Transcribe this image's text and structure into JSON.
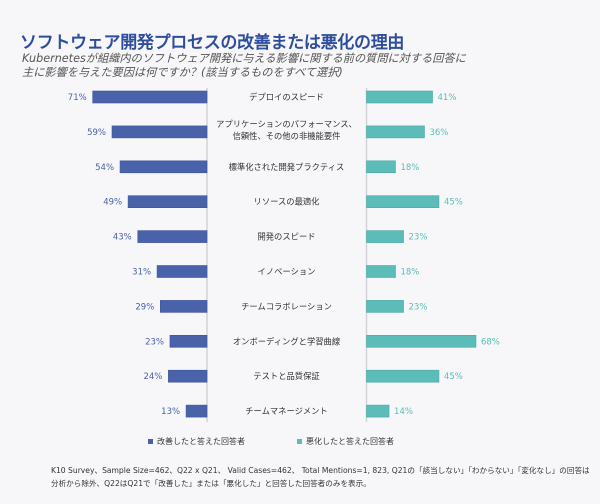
{
  "chart_data": {
    "type": "bar",
    "orientation": "horizontal-diverging",
    "title": "ソフトウェア開発プロセスの改善または悪化の理由",
    "subtitle_lines": [
      "Kubernetesが組織内のソフトウェア開発に与える影響に関する前の質問に対する回答に",
      "主に影響を与えた要因は何ですか？(該当するものをすべて選択)"
    ],
    "categories": [
      [
        "デプロイのスピード"
      ],
      [
        "アプリケーションのパフォーマンス、",
        "信頼性、その他の非機能要件"
      ],
      [
        "標準化された開発プラクティス"
      ],
      [
        "リソースの最適化"
      ],
      [
        "開発のスピード"
      ],
      [
        "イノベーション"
      ],
      [
        "チームコラボレーション"
      ],
      [
        "オンボーディングと学習曲線"
      ],
      [
        "テストと品質保証"
      ],
      [
        "チームマネージメント"
      ]
    ],
    "series": [
      {
        "name": "改善したと答えた回答者",
        "side": "left",
        "color": "#4a62aa",
        "label_color": "#4a62aa",
        "values": [
          71,
          59,
          54,
          49,
          43,
          31,
          29,
          23,
          24,
          13
        ]
      },
      {
        "name": "悪化したと答えた回答者",
        "side": "right",
        "color": "#5bbcb8",
        "label_color": "#5bbcb8",
        "values": [
          41,
          36,
          18,
          45,
          23,
          18,
          23,
          68,
          45,
          14
        ]
      }
    ],
    "value_suffix": "%",
    "xlim": [
      0,
      100
    ],
    "legend_position": "bottom",
    "grid": false
  },
  "footnote": {
    "line1": "K10 Survey、Sample Size=462、Q22 x Q21、 Valid Cases=462、 Total Mentions=1, 823, Q21の「該当しない」「わからない」「変化なし」の回答は",
    "line2": "分析から除外、Q22はQ21で「改善した」または「悪化した」と回答した回答者のみを表示。"
  },
  "colors": {
    "title": "#2e4d9c",
    "axis": "#d4d4d8",
    "background": "#f7f7f9"
  }
}
